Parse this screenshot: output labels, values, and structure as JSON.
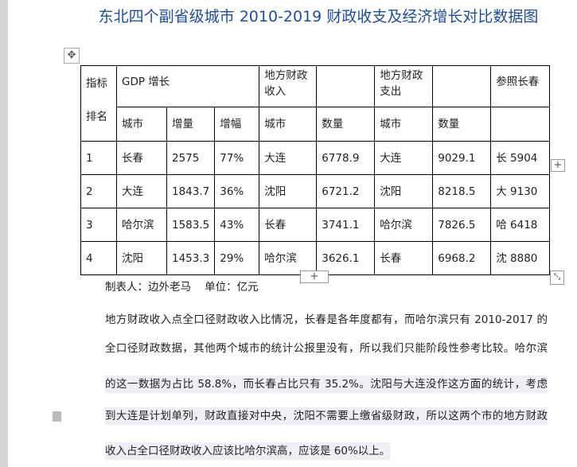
{
  "title": "东北四个副省级城市 2010-2019 财政收支及经济增长对比数据图",
  "table": {
    "headers": {
      "rank_label_1": "指标",
      "rank_label_2": "排名",
      "gdp": "GDP 增长",
      "revenue": "地方财政收入",
      "expenditure": "地方财政支出",
      "reference": "参照长春"
    },
    "sub_headers": [
      "城市",
      "增量",
      "增幅",
      "城市",
      "数量",
      "城市",
      "数量"
    ],
    "rows": [
      [
        "1",
        "长春",
        "2575",
        "77%",
        "大连",
        "6778.9",
        "大连",
        "9029.1",
        "长 5904"
      ],
      [
        "2",
        "大连",
        "1843.7",
        "36%",
        "沈阳",
        "6721.2",
        "沈阳",
        "8218.5",
        "大 9130"
      ],
      [
        "3",
        "哈尔滨",
        "1583.5",
        "43%",
        "长春",
        "3741.1",
        "哈尔滨",
        "7826.5",
        "哈 6418"
      ],
      [
        "4",
        "沈阳",
        "1453.3",
        "29%",
        "哈尔滨",
        "3626.1",
        "长春",
        "6968.2",
        "沈 8880"
      ]
    ]
  },
  "caption": "制表人：边外老马    单位：亿元",
  "paragraph": [
    "地方财政收入点全口径财政收入比情况，长春是各年度都有，而哈尔滨只有 2010-2017 的",
    "全口径财政数据，其他两个城市的统计公报里没有，所以我们只能阶段性参考比较。哈尔滨",
    "的这一数据为占比 58.8%，而长春占比只有 35.2%。沈阳与大连没作这方面的统计，考虑",
    "到大连是计划单列，财政直接对中央，沈阳不需要上缴省级财政，所以这两个市的地方财政",
    "收入占全口径财政收入应该比哈尔滨高，应该是 60%以上。"
  ]
}
